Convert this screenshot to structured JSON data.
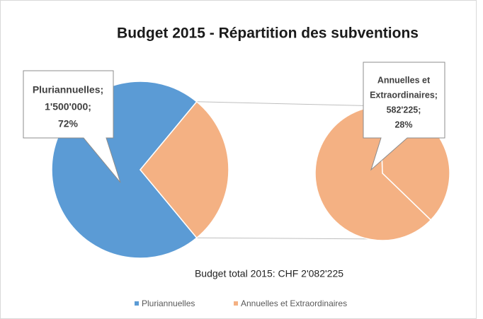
{
  "chart_data": {
    "type": "pie-of-pie",
    "title": "Budget 2015 - Répartition des subventions",
    "caption": "Budget total 2015: CHF 2'082'225",
    "categories": [
      "Pluriannuelles",
      "Annuelles et Extraordinaires"
    ],
    "values": [
      1500000,
      582225
    ],
    "percents": [
      72,
      28
    ],
    "colors": [
      "#5b9bd5",
      "#f4b183"
    ],
    "data_labels": [
      [
        "Pluriannuelles;",
        "1'500'000;",
        "72%"
      ],
      [
        "Annuelles et",
        "Extraordinaires;",
        "582'225;",
        "28%"
      ]
    ],
    "secondary": {
      "values": [
        220000,
        362225
      ],
      "color": "#f4b183"
    },
    "legend": "bottom"
  }
}
